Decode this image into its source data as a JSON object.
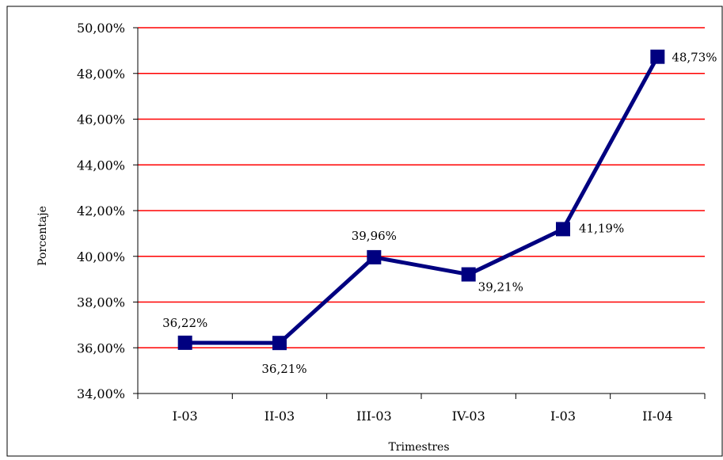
{
  "chart_data": {
    "type": "line",
    "title": "",
    "xlabel": "Trimestres",
    "ylabel": "Porcentaje",
    "categories": [
      "I-03",
      "II-03",
      "III-03",
      "IV-03",
      "I-03",
      "II-04"
    ],
    "series": [
      {
        "values": [
          36.22,
          36.21,
          39.96,
          39.21,
          41.19,
          48.73
        ],
        "data_labels": [
          "36,22%",
          "36,21%",
          "39,96%",
          "39,21%",
          "41,19%",
          "48,73%"
        ],
        "color": "#000080",
        "marker": "square"
      }
    ],
    "ylim": [
      34,
      50
    ],
    "yticks": [
      34,
      36,
      38,
      40,
      42,
      44,
      46,
      48,
      50
    ],
    "ytick_labels": [
      "34,00%",
      "36,00%",
      "38,00%",
      "40,00%",
      "42,00%",
      "44,00%",
      "46,00%",
      "48,00%",
      "50,00%"
    ],
    "grid": true,
    "grid_color": "#ff0000",
    "legend": "none"
  }
}
